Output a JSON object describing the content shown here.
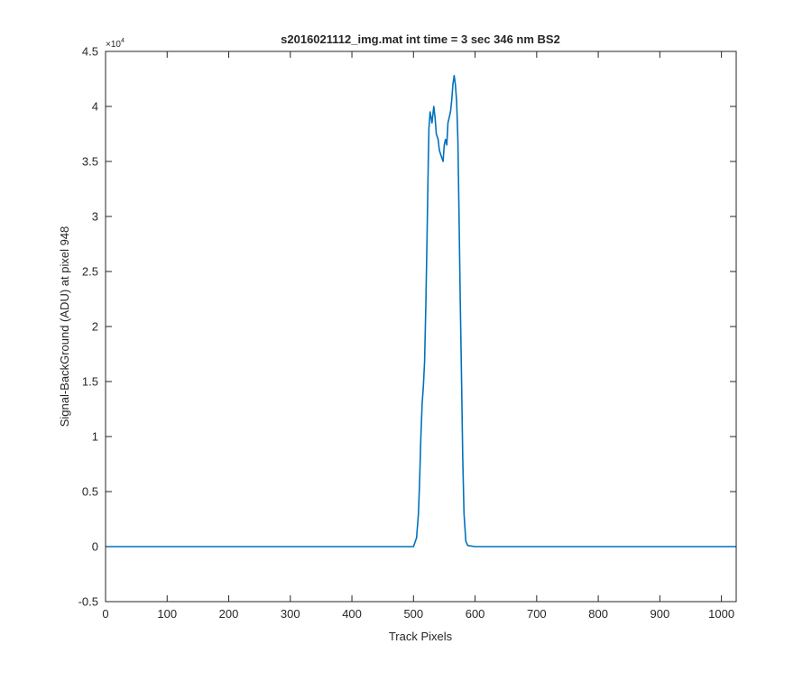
{
  "chart_data": {
    "type": "line",
    "title": "s2016021112_img.mat int time = 3 sec  346 nm BS2",
    "xlabel": "Track Pixels",
    "ylabel": "Signal-BackGround (ADU) at pixel 948",
    "y_exponent_label": "×10",
    "y_exponent": "4",
    "xlim": [
      0,
      1024
    ],
    "ylim": [
      -5000,
      45000
    ],
    "x_ticks": [
      0,
      100,
      200,
      300,
      400,
      500,
      600,
      700,
      800,
      900,
      1000
    ],
    "y_ticks": [
      -0.5,
      0,
      0.5,
      1,
      1.5,
      2,
      2.5,
      3,
      3.5,
      4,
      4.5
    ],
    "y_tick_labels": [
      "-0.5",
      "0",
      "0.5",
      "1",
      "1.5",
      "2",
      "2.5",
      "3",
      "3.5",
      "4",
      "4.5"
    ],
    "grid": false,
    "line_color": "#0072BD",
    "series": [
      {
        "x": [
          0,
          100,
          200,
          300,
          400,
          500,
          505,
          508,
          510,
          512,
          514,
          516,
          518,
          520,
          522,
          524,
          525,
          527,
          530,
          533,
          535,
          537,
          540,
          542,
          545,
          548,
          550,
          552,
          554,
          556,
          558,
          560,
          562,
          564,
          566,
          568,
          570,
          572,
          574,
          576,
          578,
          580,
          582,
          585,
          588,
          600,
          700,
          800,
          900,
          1024
        ],
        "y": [
          0,
          0,
          0,
          0,
          0,
          0,
          800,
          3000,
          6000,
          10000,
          13000,
          14500,
          16800,
          22000,
          28000,
          35000,
          38000,
          39500,
          38500,
          40000,
          39000,
          37500,
          37000,
          36000,
          35500,
          35000,
          36500,
          37000,
          36500,
          38500,
          39000,
          39500,
          40500,
          42000,
          42800,
          42000,
          40500,
          37000,
          30000,
          22000,
          15000,
          8000,
          3000,
          500,
          100,
          0,
          0,
          0,
          0,
          0
        ]
      }
    ]
  }
}
